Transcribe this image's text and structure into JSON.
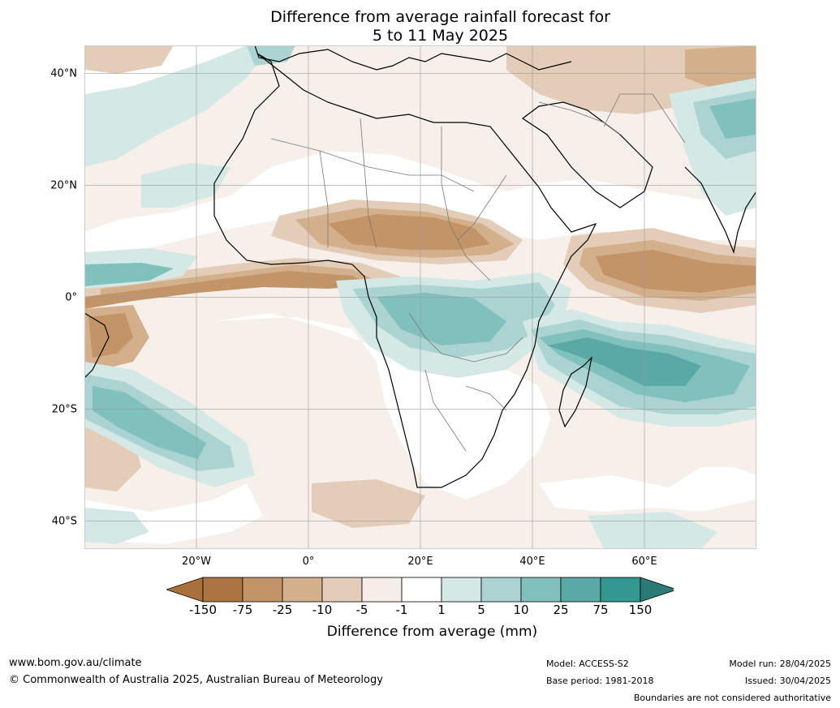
{
  "title": {
    "line1": "Difference from average rainfall forecast for",
    "line2": "5 to 11 May 2025"
  },
  "axes": {
    "lat_labels": [
      "40°N",
      "20°N",
      "0°",
      "20°S",
      "40°S"
    ],
    "lat_values": [
      40,
      20,
      0,
      -20,
      -40
    ],
    "lon_labels": [
      "20°W",
      "0°",
      "20°E",
      "40°E",
      "60°E"
    ],
    "lon_values": [
      -20,
      0,
      20,
      40,
      60
    ],
    "lat_range": [
      -45,
      45
    ],
    "lon_range": [
      -40,
      80
    ],
    "grid": true
  },
  "legend": {
    "ticks": [
      "-150",
      "-75",
      "-25",
      "-10",
      "-5",
      "-1",
      "1",
      "5",
      "10",
      "25",
      "75",
      "150"
    ],
    "colors": [
      "#a8703a",
      "#ac7440",
      "#c29467",
      "#d3af8c",
      "#e4cdb8",
      "#f4ede8",
      "#ffffff",
      "#d4e9e6",
      "#aad3d1",
      "#80c0bd",
      "#5aa9a7",
      "#339892",
      "#2a7a76"
    ],
    "label": "Difference from average (mm)"
  },
  "footer": {
    "url": "www.bom.gov.au/climate",
    "copyright": "© Commonwealth of Australia 2025, Australian Bureau of Meteorology",
    "model": "Model: ACCESS-S2",
    "base_period": "Base period: 1981-2018",
    "model_run": "Model run: 28/04/2025",
    "issued": "Issued: 30/04/2025",
    "disclaimer": "Boundaries are not considered authoritative"
  }
}
